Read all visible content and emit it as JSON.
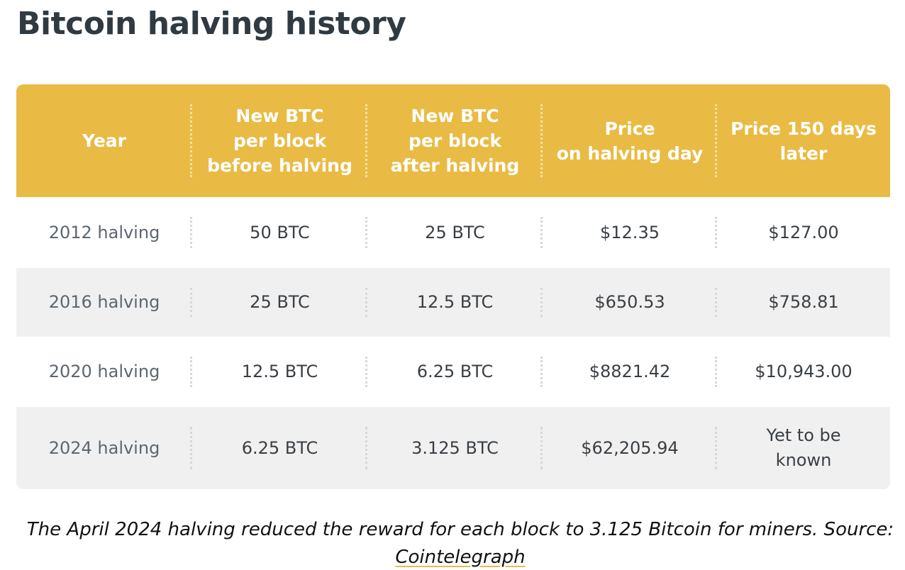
{
  "title": "Bitcoin halving history",
  "colors": {
    "header_bg": "#e9bb45",
    "header_text": "#ffffff",
    "row_alt_bg": "#f0f0f0",
    "title_text": "#2f3a42"
  },
  "table": {
    "headers": [
      "Year",
      "New BTC\nper block\nbefore halving",
      "New BTC\nper block\nafter halving",
      "Price\non halving day",
      "Price 150 days\nlater"
    ],
    "rows": [
      [
        "2012 halving",
        "50 BTC",
        "25 BTC",
        "$12.35",
        "$127.00"
      ],
      [
        "2016 halving",
        "25 BTC",
        "12.5 BTC",
        "$650.53",
        "$758.81"
      ],
      [
        "2020 halving",
        "12.5 BTC",
        "6.25 BTC",
        "$8821.42",
        "$10,943.00"
      ],
      [
        "2024 halving",
        "6.25 BTC",
        "3.125 BTC",
        "$62,205.94",
        "Yet to be\nknown"
      ]
    ]
  },
  "caption": {
    "text": "The April 2024 halving reduced the reward for each block to 3.125 Bitcoin for miners. Source:",
    "source_link": "Cointelegraph"
  }
}
